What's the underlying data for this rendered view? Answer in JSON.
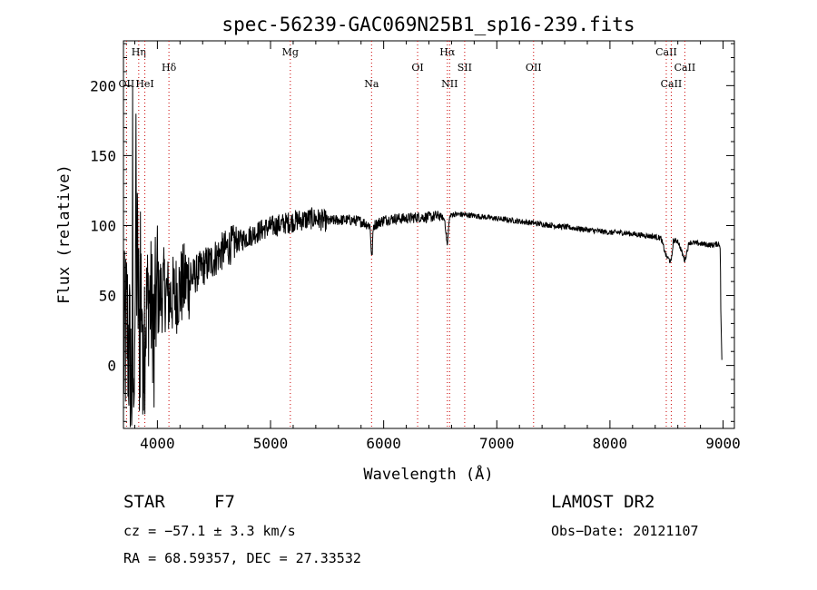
{
  "chart_data": {
    "type": "line",
    "title": "spec-56239-GAC069N25B1_sp16-239.fits",
    "xlabel": "Wavelength (Å)",
    "ylabel": "Flux (relative)",
    "xlim": [
      3700,
      9100
    ],
    "ylim": [
      -45,
      232
    ],
    "xticks": [
      4000,
      5000,
      6000,
      7000,
      8000,
      9000
    ],
    "yticks": [
      0,
      50,
      100,
      150,
      200
    ],
    "grid": false,
    "series": [
      {
        "color": "#000000",
        "x": [
          3700,
          3730,
          3760,
          3780,
          3800,
          3820,
          3840,
          3860,
          3880,
          3900,
          3930,
          3960,
          3990,
          4020,
          4060,
          4100,
          4150,
          4200,
          4250,
          4300,
          4350,
          4400,
          4450,
          4500,
          4550,
          4600,
          4650,
          4700,
          4750,
          4800,
          4850,
          4900,
          4950,
          5000,
          5050,
          5100,
          5150,
          5200,
          5250,
          5300,
          5350,
          5400,
          5450,
          5500,
          5600,
          5700,
          5800,
          5880,
          5895,
          5910,
          6000,
          6100,
          6200,
          6300,
          6400,
          6500,
          6540,
          6563,
          6580,
          6600,
          6700,
          6800,
          6900,
          7000,
          7100,
          7200,
          7300,
          7400,
          7500,
          7600,
          7700,
          7800,
          7900,
          8000,
          8100,
          8200,
          8300,
          8400,
          8450,
          8498,
          8542,
          8560,
          8600,
          8662,
          8700,
          8800,
          8900,
          8960,
          8975,
          8980,
          8990
        ],
        "y": [
          5,
          30,
          0,
          -20,
          40,
          80,
          20,
          60,
          30,
          40,
          50,
          35,
          45,
          50,
          55,
          48,
          50,
          55,
          60,
          62,
          66,
          70,
          73,
          76,
          80,
          83,
          86,
          88,
          90,
          92,
          94,
          96,
          98,
          99,
          100,
          101,
          102,
          103,
          104,
          104,
          105,
          105,
          104,
          103,
          104,
          104,
          103,
          100,
          75,
          100,
          104,
          105,
          105,
          106,
          106,
          107,
          104,
          85,
          105,
          108,
          108,
          107,
          106,
          105,
          104,
          103,
          102,
          101,
          100,
          99,
          98,
          97,
          96,
          95,
          95,
          94,
          93,
          92,
          91,
          78,
          74,
          89,
          89,
          75,
          88,
          87,
          86,
          87,
          85,
          40,
          0
        ]
      }
    ],
    "noise_amplitude_note_free": true,
    "emission_lines": [
      {
        "label": "Hη",
        "wavelength": 3835,
        "row": "top"
      },
      {
        "label": "OII",
        "wavelength": 3727,
        "row": "low"
      },
      {
        "label": "HeI",
        "wavelength": 3889,
        "row": "low"
      },
      {
        "label": "Hδ",
        "wavelength": 4102,
        "row": "mid"
      },
      {
        "label": "Mg",
        "wavelength": 5175,
        "row": "top"
      },
      {
        "label": "Na",
        "wavelength": 5893,
        "row": "low"
      },
      {
        "label": "OI",
        "wavelength": 6300,
        "row": "mid"
      },
      {
        "label": "Hα",
        "wavelength": 6563,
        "row": "top"
      },
      {
        "label": "NII",
        "wavelength": 6583,
        "row": "low"
      },
      {
        "label": "SII",
        "wavelength": 6716,
        "row": "mid"
      },
      {
        "label": "OII",
        "wavelength": 7325,
        "row": "mid"
      },
      {
        "label": "CaII",
        "wavelength": 8498,
        "row": "top"
      },
      {
        "label": "CaII",
        "wavelength": 8542,
        "row": "low"
      },
      {
        "label": "CaII",
        "wavelength": 8662,
        "row": "mid"
      }
    ]
  },
  "info": {
    "object_type": "STAR",
    "subclass": "F7",
    "survey": "LAMOST DR2",
    "cz": "cz = −57.1 ± 3.3 km/s",
    "obs_date": "Obs−Date: 20121107",
    "coords": "RA =  68.59357, DEC =  27.33532"
  }
}
